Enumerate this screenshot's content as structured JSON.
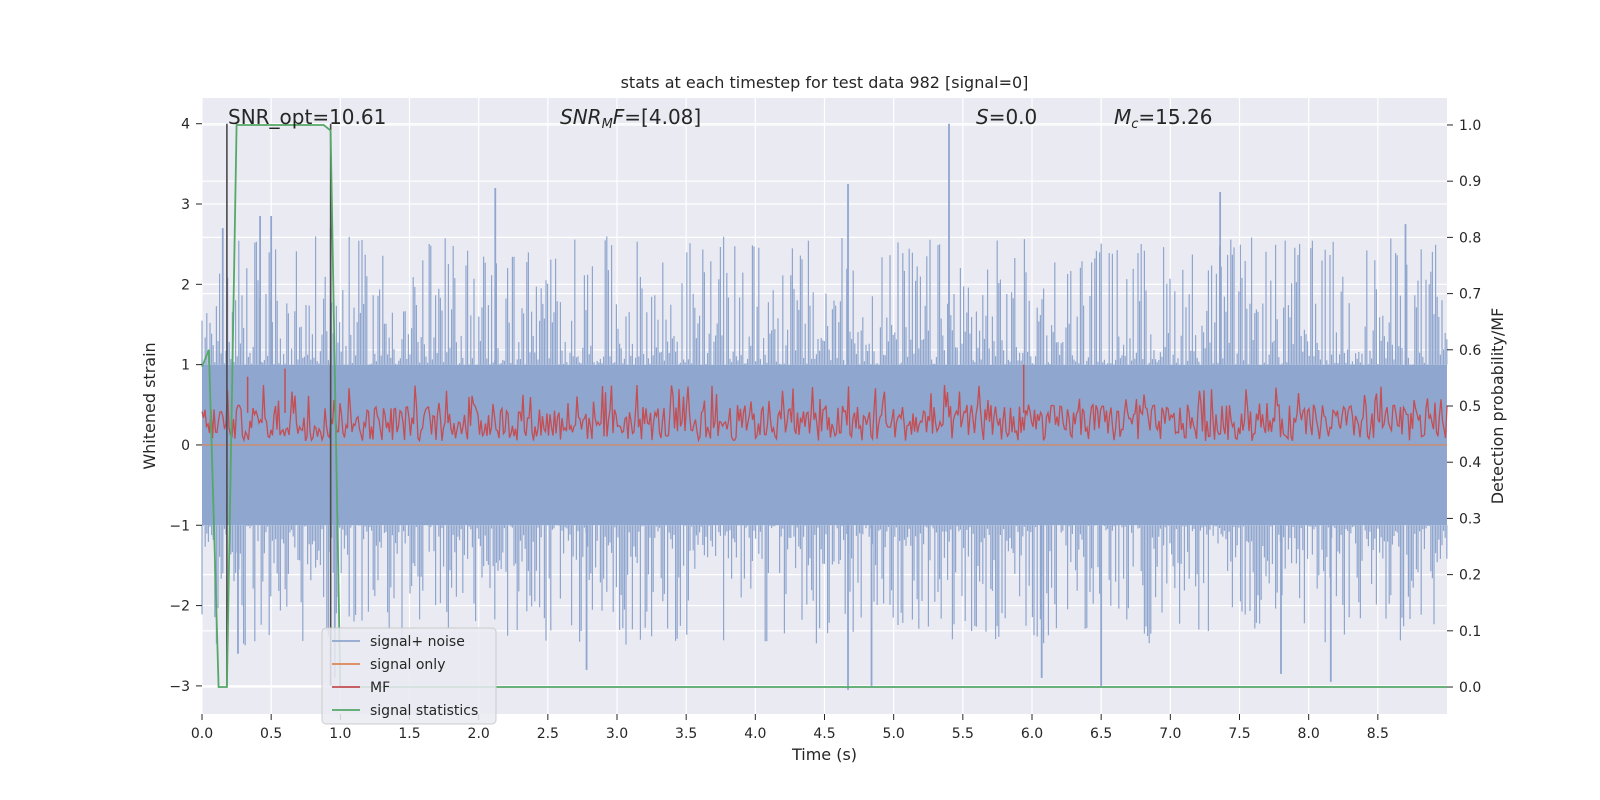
{
  "chart_data": {
    "type": "line",
    "title": "stats at each timestep for test data 982 [signal=0]",
    "xlabel": "Time (s)",
    "ylabel": "Whitened strain",
    "ylabel_right": "Detection probability/MF",
    "xlim": [
      0.0,
      9.0
    ],
    "ylim": [
      -3.35,
      4.32
    ],
    "ylim_right": [
      -0.048,
      1.048
    ],
    "x_ticks": [
      "0.0",
      "0.5",
      "1.0",
      "1.5",
      "2.0",
      "2.5",
      "3.0",
      "3.5",
      "4.0",
      "4.5",
      "5.0",
      "5.5",
      "6.0",
      "6.5",
      "7.0",
      "7.5",
      "8.0",
      "8.5"
    ],
    "x_tick_values": [
      0.0,
      0.5,
      1.0,
      1.5,
      2.0,
      2.5,
      3.0,
      3.5,
      4.0,
      4.5,
      5.0,
      5.5,
      6.0,
      6.5,
      7.0,
      7.5,
      8.0,
      8.5
    ],
    "y_ticks": [
      "−3",
      "−2",
      "−1",
      "0",
      "1",
      "2",
      "3",
      "4"
    ],
    "y_tick_values": [
      -3,
      -2,
      -1,
      0,
      1,
      2,
      3,
      4
    ],
    "y_right_ticks": [
      "0.0",
      "0.1",
      "0.2",
      "0.3",
      "0.4",
      "0.5",
      "0.6",
      "0.7",
      "0.8",
      "0.9",
      "1.0"
    ],
    "y_right_tick_values": [
      0.0,
      0.1,
      0.2,
      0.3,
      0.4,
      0.5,
      0.6,
      0.7,
      0.8,
      0.9,
      1.0
    ],
    "grid": true,
    "legend_placement": "lower-left",
    "annotations": {
      "snr_opt": "SNR_opt=10.61",
      "snr_mf_base": "SNR",
      "snr_mf_sub": "M",
      "snr_mf_rest": "F=[4.08]",
      "s_italic": "S",
      "s_rest": "=0.0",
      "mc_base": "M",
      "mc_sub": "c",
      "mc_rest": "=15.26"
    },
    "vlines": [
      0.18,
      0.93
    ],
    "vline_range": [
      -3.0,
      4.0
    ],
    "series": [
      {
        "name": "signal+ noise",
        "color": "#8fa6cf",
        "kind": "noise",
        "band_low": -1.0,
        "band_high": 1.0,
        "tall_spikes_up": [
          [
            0.15,
            2.7
          ],
          [
            0.42,
            2.85
          ],
          [
            0.5,
            2.85
          ],
          [
            0.93,
            2.7
          ],
          [
            2.12,
            3.2
          ],
          [
            4.67,
            3.25
          ],
          [
            5.4,
            4.0
          ],
          [
            7.36,
            3.15
          ],
          [
            8.7,
            2.75
          ]
        ],
        "tall_spikes_down": [
          [
            0.26,
            -2.6
          ],
          [
            0.96,
            -2.9
          ],
          [
            2.78,
            -2.8
          ],
          [
            4.67,
            -3.05
          ],
          [
            4.84,
            -3.0
          ],
          [
            6.07,
            -2.9
          ],
          [
            6.5,
            -3.0
          ],
          [
            7.8,
            -2.85
          ],
          [
            8.16,
            -2.95
          ]
        ]
      },
      {
        "name": "signal only",
        "color": "#dd8452",
        "kind": "flat",
        "value": 0.0
      },
      {
        "name": "MF",
        "color": "#c44e52",
        "kind": "mf",
        "band_low": 0.05,
        "band_high": 0.5,
        "peaks": [
          [
            0.6,
            0.95
          ],
          [
            5.94,
            1.0
          ],
          [
            0.33,
            0.85
          ]
        ]
      },
      {
        "name": "signal statistics",
        "color": "#55a868",
        "axis": "right",
        "kind": "line",
        "x": [
          0.0,
          0.05,
          0.12,
          0.18,
          0.25,
          0.88,
          0.93,
          1.0,
          9.0
        ],
        "y": [
          0.57,
          0.6,
          0.0,
          0.0,
          1.0,
          1.0,
          0.99,
          0.0,
          0.0
        ]
      }
    ]
  }
}
